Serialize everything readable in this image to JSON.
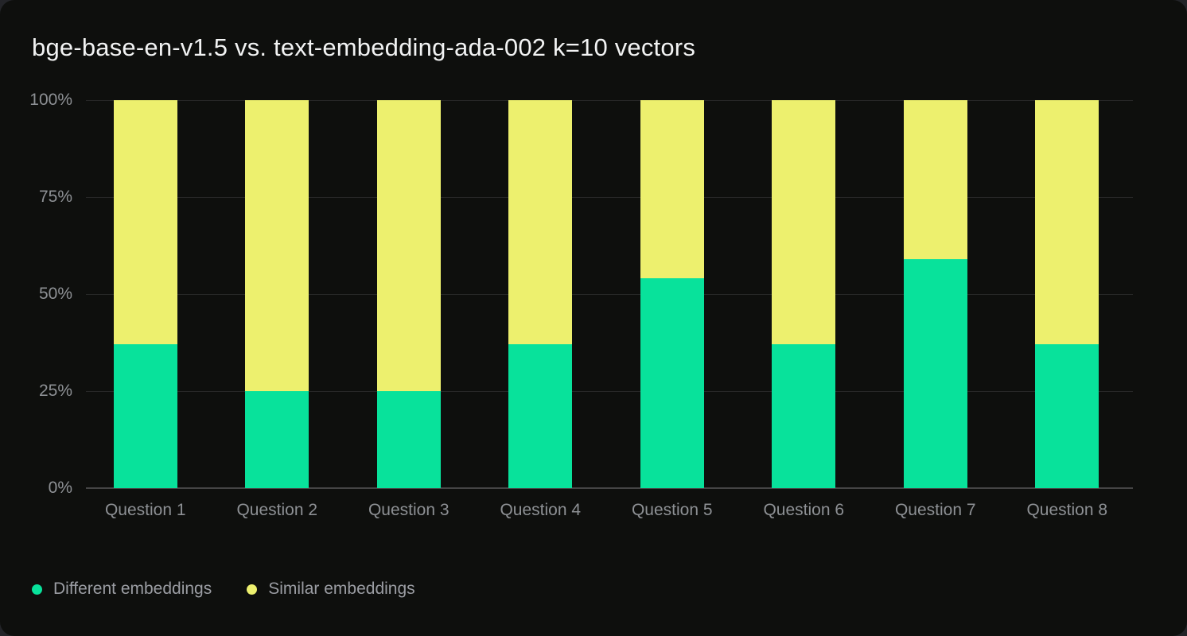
{
  "colors": {
    "page_bg": "#232428",
    "card_bg": "#0e0f0d",
    "grid": "#282828",
    "axis_baseline": "#454545",
    "tick_label": "#8d9094",
    "legend_text": "#9b9da3",
    "title_text": "#f2f3f3",
    "different_embeddings": "#08e29b",
    "similar_embeddings": "#edf06e"
  },
  "chart_data": {
    "type": "bar",
    "stacked": true,
    "title": "bge-base-en-v1.5 vs. text-embedding-ada-002 k=10 vectors",
    "categories": [
      "Question 1",
      "Question 2",
      "Question 3",
      "Question 4",
      "Question 5",
      "Question 6",
      "Question 7",
      "Question 8"
    ],
    "series": [
      {
        "name": "Different embeddings",
        "color_key": "different_embeddings",
        "values": [
          37,
          25,
          25,
          37,
          54,
          37,
          59,
          37
        ]
      },
      {
        "name": "Similar embeddings",
        "color_key": "similar_embeddings",
        "values": [
          63,
          75,
          75,
          63,
          46,
          63,
          41,
          63
        ]
      }
    ],
    "xlabel": "",
    "ylabel": "",
    "ylim": [
      0,
      100
    ],
    "ytick_values": [
      0,
      25,
      50,
      75,
      100
    ],
    "ytick_labels": [
      "0%",
      "25%",
      "50%",
      "75%",
      "100%"
    ],
    "grid": "horizontal",
    "legend_position": "bottom-left"
  }
}
